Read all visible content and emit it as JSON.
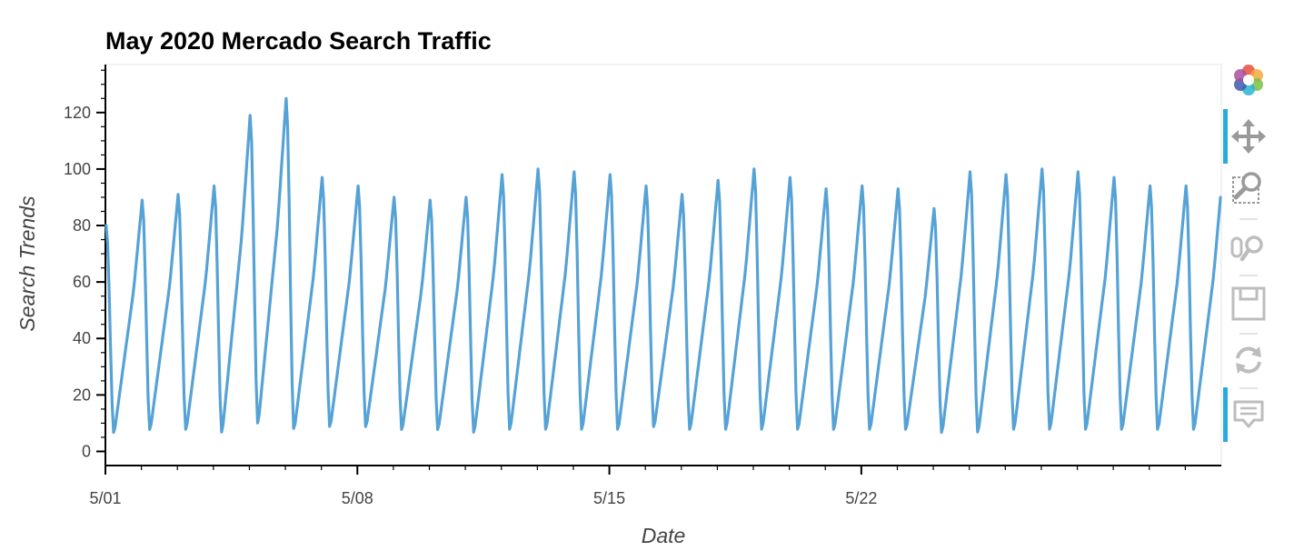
{
  "chart_data": {
    "type": "line",
    "title": "May 2020 Mercado Search Traffic",
    "xlabel": "Date",
    "ylabel": "Search Trends",
    "x_tick_labels": [
      "5/01",
      "5/08",
      "5/15",
      "5/22"
    ],
    "x_range_days": [
      0,
      31
    ],
    "ylim": [
      -5,
      137
    ],
    "y_ticks": [
      0,
      20,
      40,
      60,
      80,
      100,
      120
    ],
    "grid": false,
    "legend": "none",
    "series": [
      {
        "color": "#55a2d6",
        "start_value": 80,
        "daily_peaks": [
          89,
          91,
          94,
          119,
          125,
          97,
          94,
          90,
          89,
          90,
          98,
          100,
          99,
          98,
          94,
          91,
          96,
          100,
          97,
          93,
          94,
          93,
          86,
          99,
          98,
          100,
          99,
          97,
          94,
          94,
          96
        ],
        "daily_minimums": [
          6,
          7,
          7,
          6,
          9,
          7,
          8,
          8,
          7,
          7,
          6,
          7,
          7,
          7,
          7,
          8,
          7,
          7,
          7,
          7,
          7,
          7,
          7,
          6,
          6,
          7,
          7,
          7,
          7,
          7,
          7
        ]
      }
    ]
  },
  "toolbar": {
    "tools": [
      "bokeh-logo",
      "pan",
      "box-zoom",
      "wheel-zoom",
      "save",
      "reset",
      "hover"
    ]
  }
}
